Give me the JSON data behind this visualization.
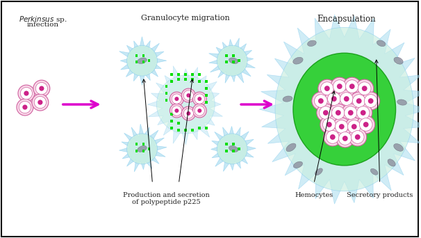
{
  "bg_color": "#f0f0f0",
  "border_color": "#111111",
  "cell_body_color": "#c8f0e0",
  "cell_spike_color": "#a8ddf0",
  "green_dot_color": "#00dd00",
  "pink_fill": "#f8d8e8",
  "pink_edge": "#d060a0",
  "pink_dot": "#cc2288",
  "gray_color": "#888899",
  "dark_green": "#22cc22",
  "arrow_magenta": "#dd00cc",
  "text_color": "#222222",
  "title_left_italic": "Perkinsus",
  "title_left_normal": " sp.",
  "title_left_line2": "infection",
  "title_mid": "Granulocyte migration",
  "title_right": "Encapsulation",
  "label_prod": "Production and secretion\nof polypeptide p225",
  "label_hemo": "Hemocytes",
  "label_sec": "Secretory products"
}
